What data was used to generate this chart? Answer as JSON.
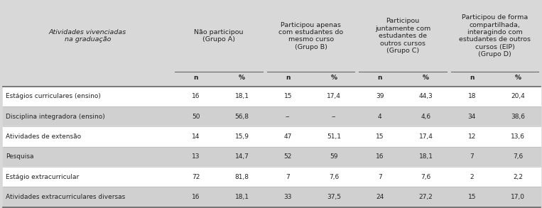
{
  "col_headers": [
    "Atividades vivenciadas\nna graduação",
    "Não participou\n(Grupo A)",
    "Participou apenas\ncom estudantes do\nmesmo curso\n(Grupo B)",
    "Participou\njuntamente com\nestudantes de\noutros cursos\n(Grupo C)",
    "Participou de forma\ncompartilhada,\ninteragindo com\nestudantes de outros\ncursos (EIP)\n(Grupo D)"
  ],
  "sub_headers": [
    "n",
    "%",
    "n",
    "%",
    "n",
    "%",
    "n",
    "%"
  ],
  "rows": [
    [
      "Estágios curriculares (ensino)",
      "16",
      "18,1",
      "15",
      "17,4",
      "39",
      "44,3",
      "18",
      "20,4"
    ],
    [
      "Disciplina integradora (ensino)",
      "50",
      "56,8",
      "--",
      "--",
      "4",
      "4,6",
      "34",
      "38,6"
    ],
    [
      "Atividades de extensão",
      "14",
      "15,9",
      "47",
      "51,1",
      "15",
      "17,4",
      "12",
      "13,6"
    ],
    [
      "Pesquisa",
      "13",
      "14,7",
      "52",
      "59",
      "16",
      "18,1",
      "7",
      "7,6"
    ],
    [
      "Estágio extracurricular",
      "72",
      "81,8",
      "7",
      "7,6",
      "7",
      "7,6",
      "2",
      "2,2"
    ],
    [
      "Atividades extracurriculares diversas",
      "16",
      "18,1",
      "33",
      "37,5",
      "24",
      "27,2",
      "15",
      "17,0"
    ]
  ],
  "bg_color": "#d8d8d8",
  "row_color_odd": "#ffffff",
  "row_color_even": "#d0d0d0",
  "header_bg": "#d8d8d8",
  "text_color": "#222222",
  "line_color": "#666666",
  "sep_line_color": "#bbbbbb",
  "font_size": 6.5,
  "header_font_size": 6.8,
  "col_props": [
    0.27,
    0.073,
    0.073,
    0.073,
    0.073,
    0.073,
    0.073,
    0.073,
    0.073
  ]
}
